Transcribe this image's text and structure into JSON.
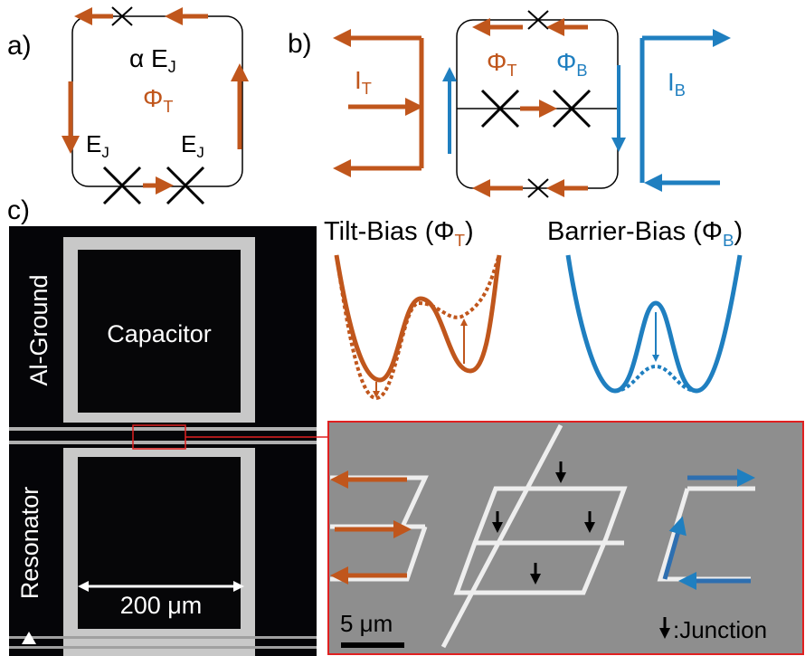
{
  "panel_a": {
    "label": "a)",
    "junction_small": {
      "text": "α E",
      "sub": "J"
    },
    "junction_left": {
      "text": "E",
      "sub": "J"
    },
    "junction_right": {
      "text": "E",
      "sub": "J"
    },
    "flux": {
      "text": "Φ",
      "sub": "T"
    }
  },
  "panel_b": {
    "label": "b)",
    "current_tilt": {
      "text": "I",
      "sub": "T"
    },
    "flux_tilt": {
      "text": "Φ",
      "sub": "T"
    },
    "flux_barrier": {
      "text": "Φ",
      "sub": "B"
    },
    "current_barrier": {
      "text": "I",
      "sub": "B"
    },
    "tilt_title": {
      "text": "Tilt-Bias (Φ",
      "sub": "T",
      "close": ")"
    },
    "barrier_title": {
      "text": "Barrier-Bias (Φ",
      "sub": "B",
      "close": ")"
    }
  },
  "panel_c": {
    "label": "c)",
    "capacitor": "Capacitor",
    "ground": "Al-Ground",
    "resonator": "Resonator",
    "scale_optical": "200 μm",
    "scale_sem": "5 μm",
    "legend": ":Junction"
  }
}
